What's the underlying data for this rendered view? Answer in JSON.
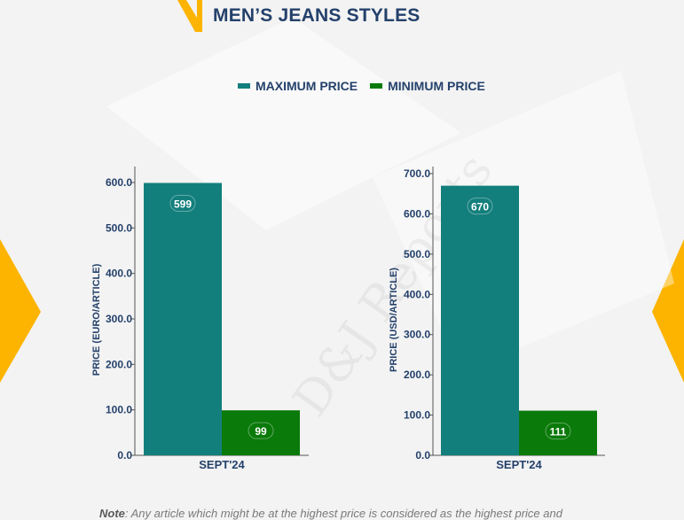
{
  "page": {
    "title": "MEN’S JEANS STYLES",
    "watermark": "D&J Reports",
    "note_label": "Note",
    "note_text": ": Any article which might be at the highest price is considered as the highest price and"
  },
  "colors": {
    "max": "#137f7c",
    "min": "#0a7a0a",
    "title": "#24416b",
    "accent": "#fcb400"
  },
  "legend": [
    {
      "label": "MAXIMUM PRICE",
      "color": "#137f7c"
    },
    {
      "label": "MINIMUM PRICE",
      "color": "#0a7a0a"
    }
  ],
  "chart_data": [
    {
      "type": "bar",
      "categories": [
        "SEPT'24"
      ],
      "series": [
        {
          "name": "MAXIMUM PRICE",
          "values": [
            599
          ]
        },
        {
          "name": "MINIMUM PRICE",
          "values": [
            99
          ]
        }
      ],
      "ylabel": "PRICE (EURO/ARTICLE)",
      "ylim": [
        0,
        630
      ],
      "yticks": [
        0,
        100,
        200,
        300,
        400,
        500,
        600
      ],
      "value_labels": [
        "599",
        "99"
      ]
    },
    {
      "type": "bar",
      "categories": [
        "SEPT'24"
      ],
      "series": [
        {
          "name": "MAXIMUM PRICE",
          "values": [
            670
          ]
        },
        {
          "name": "MINIMUM PRICE",
          "values": [
            111
          ]
        }
      ],
      "ylabel": "PRICE (USD/ARTICLE)",
      "ylim": [
        0,
        700
      ],
      "yticks": [
        0,
        100,
        200,
        300,
        400,
        500,
        600,
        700
      ],
      "value_labels": [
        "670",
        "111"
      ]
    }
  ]
}
